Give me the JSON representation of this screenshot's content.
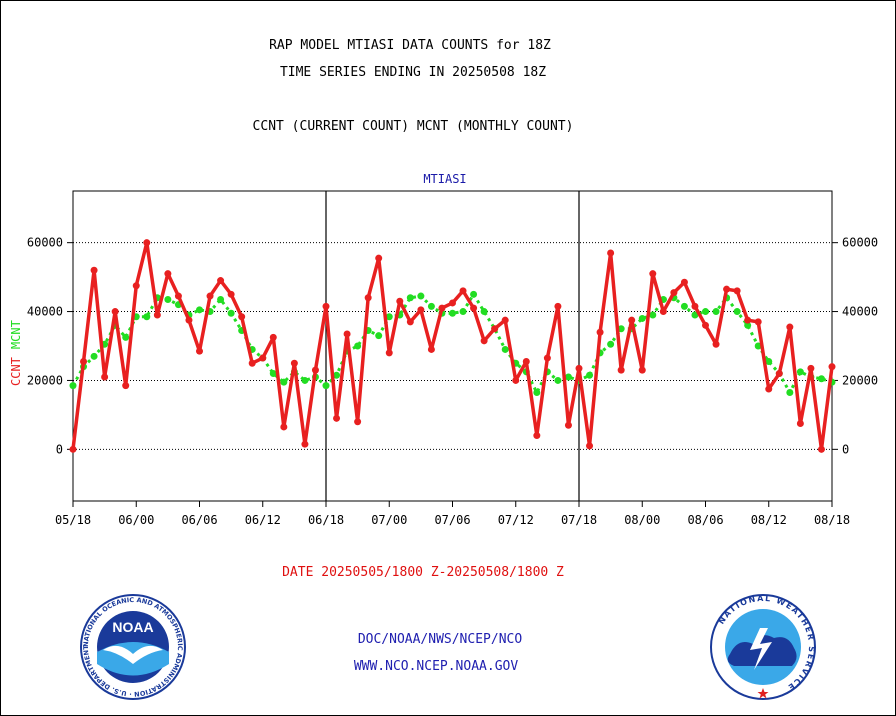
{
  "header": {
    "title_line1": "RAP MODEL MTIASI DATA COUNTS for 18Z",
    "title_line2": "TIME SERIES ENDING IN 20250508 18Z",
    "subtitle": "CCNT (CURRENT COUNT) MCNT (MONTHLY COUNT)"
  },
  "footer": {
    "date_range": "DATE 20250505/1800 Z-20250508/1800 Z",
    "credit_line1": "DOC/NOAA/NWS/NCEP/NCO",
    "credit_line2": "WWW.NCO.NCEP.NOAA.GOV"
  },
  "logos": {
    "left": {
      "name": "noaa-logo",
      "text": "NOAA",
      "ring_text": "NATIONAL OCEANIC AND ATMOSPHERIC ADMINISTRATION · U.S. DEPARTMENT OF COMMERCE"
    },
    "right": {
      "name": "nws-logo",
      "ring_text": "NATIONAL WEATHER SERVICE"
    }
  },
  "colors": {
    "ccnt": "#e82020",
    "mcnt": "#22dd22",
    "panel_label": "#1a1aa8",
    "axis": "#000000"
  },
  "chart_data": {
    "type": "line",
    "panel_label": "MTIASI",
    "ylabel_ccnt": "CCNT",
    "ylabel_mcnt": "MCNT",
    "ylim": [
      -15000,
      75000
    ],
    "yticks": [
      0,
      20000,
      40000,
      60000
    ],
    "ytick_labels": [
      "0",
      "20000",
      "40000",
      "60000"
    ],
    "xlim": [
      0,
      84
    ],
    "xticks": [
      0,
      6,
      12,
      18,
      24,
      30,
      36,
      42,
      48,
      54,
      60,
      66,
      72,
      78,
      84
    ],
    "xtick_labels": [
      "05/18",
      "06/00",
      "06/06",
      "06/12",
      "06/18",
      "07/00",
      "07/06",
      "07/12",
      "07/18",
      "08/00",
      "08/06",
      "08/12",
      "08/18"
    ],
    "xtick_label_positions": [
      0,
      6,
      12,
      18,
      24,
      30,
      36,
      42,
      48,
      54,
      60,
      66,
      72
    ],
    "panel_dividers": [
      24,
      48
    ],
    "grid": "horizontal dotted",
    "x": [
      0,
      1,
      2,
      3,
      4,
      5,
      6,
      7,
      8,
      9,
      10,
      11,
      12,
      13,
      14,
      15,
      16,
      17,
      18,
      19,
      20,
      21,
      22,
      23,
      24,
      25,
      26,
      27,
      28,
      29,
      30,
      31,
      32,
      33,
      34,
      35,
      36,
      37,
      38,
      39,
      40,
      41,
      42,
      43,
      44,
      45,
      46,
      47,
      48,
      49,
      50,
      51,
      52,
      53,
      54,
      55,
      56,
      57,
      58,
      59,
      60,
      61,
      62,
      63,
      64,
      65,
      66,
      67,
      68,
      69,
      70,
      71,
      72
    ],
    "series": [
      {
        "name": "CCNT",
        "values": [
          0,
          25500,
          52000,
          21000,
          40000,
          18500,
          47500,
          60000,
          39000,
          51000,
          44500,
          37500,
          28500,
          44500,
          49000,
          45000,
          38500,
          25000,
          26500,
          32500,
          6500,
          25000,
          1500,
          23000,
          41500,
          9000,
          33500,
          8000,
          44000,
          55500,
          28000,
          43000,
          37000,
          40500,
          29000,
          41000,
          42500,
          46000,
          41000,
          31500,
          35000,
          37500,
          20000,
          25500,
          4000,
          26500,
          41500,
          7000,
          23500,
          1000,
          34000,
          57000,
          23000,
          37500,
          23000,
          51000,
          40000,
          45500,
          48500,
          41500,
          36000,
          30500,
          46500,
          46000,
          37500,
          37000,
          17500,
          22000,
          35500,
          7500,
          23500,
          0,
          24000
        ]
      },
      {
        "name": "MCNT",
        "values": [
          18500,
          24000,
          27000,
          30500,
          36000,
          32500,
          38500,
          38500,
          44000,
          43500,
          42000,
          39000,
          40500,
          40000,
          43500,
          39500,
          34500,
          29000,
          26500,
          22000,
          19500,
          22500,
          20000,
          21000,
          18500,
          21500,
          28500,
          30000,
          34500,
          33000,
          38500,
          39000,
          44000,
          44500,
          41500,
          39500,
          39500,
          40000,
          45000,
          40000,
          35000,
          29000,
          25000,
          22500,
          16500,
          22500,
          20000,
          21000,
          20000,
          21500,
          28000,
          30500,
          35000,
          35000,
          38000,
          39000,
          43500,
          44000,
          41500,
          39000,
          40000,
          40000,
          44000,
          40000,
          36000,
          30000,
          25500,
          22000,
          16500,
          22500,
          21000,
          20500,
          19500
        ]
      }
    ]
  }
}
